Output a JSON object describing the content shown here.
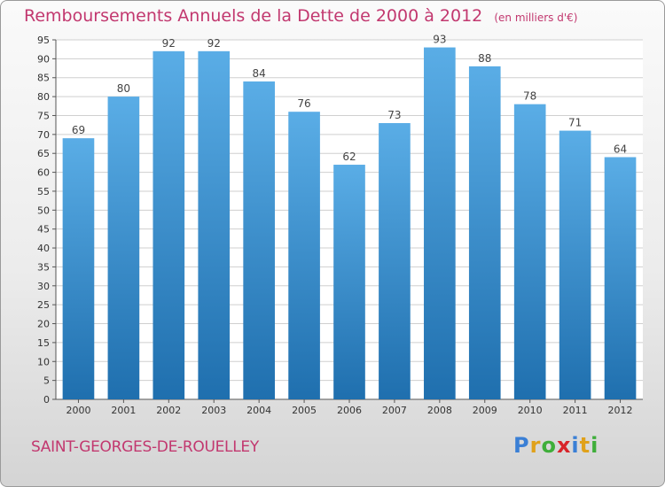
{
  "title": "Remboursements Annuels de la Dette de 2000 à 2012",
  "unit_note": "(en milliers d'€)",
  "commune": "SAINT-GEORGES-DE-ROUELLEY",
  "logo": {
    "text": "Proxiti",
    "letter_colors": [
      "#3a7fd5",
      "#e0a11a",
      "#3fae3a",
      "#d8242a",
      "#3a7fd5",
      "#e0a11a",
      "#3fae3a"
    ]
  },
  "colors": {
    "title": "#c2386f",
    "bar_top": "#5aade6",
    "bar_bottom": "#1f6fae",
    "grid": "#cfcfcf"
  },
  "chart_data": {
    "type": "bar",
    "categories": [
      "2000",
      "2001",
      "2002",
      "2003",
      "2004",
      "2005",
      "2006",
      "2007",
      "2008",
      "2009",
      "2010",
      "2011",
      "2012"
    ],
    "values": [
      69,
      80,
      92,
      92,
      84,
      76,
      62,
      73,
      93,
      88,
      78,
      71,
      64
    ],
    "ylim": [
      0,
      95
    ],
    "ytick_step": 5,
    "grid": true,
    "data_labels": true,
    "xlabel": "",
    "ylabel": ""
  }
}
